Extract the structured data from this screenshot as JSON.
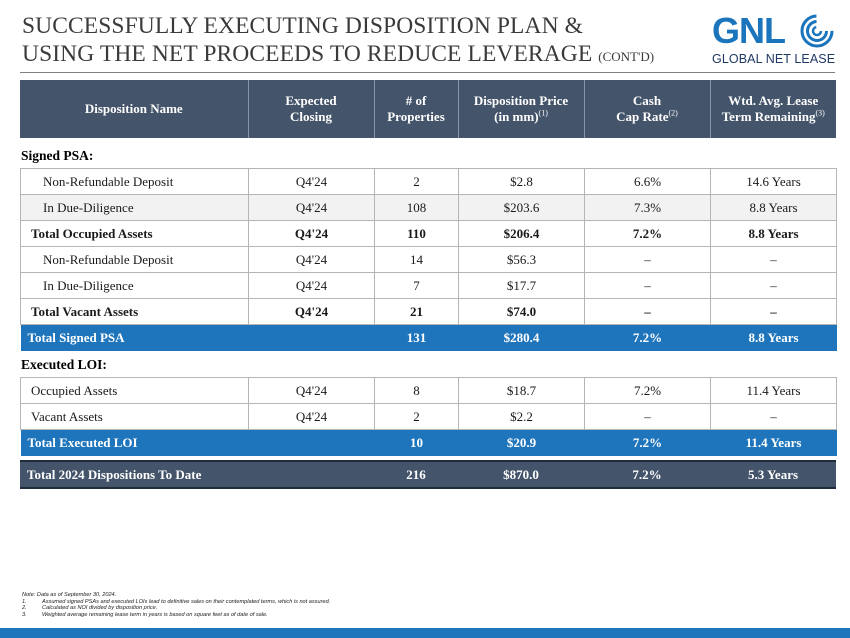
{
  "title": {
    "line1": "SUCCESSFULLY EXECUTING DISPOSITION PLAN &",
    "line2": "USING THE NET PROCEEDS TO REDUCE LEVERAGE",
    "cont": "(CONT'D)"
  },
  "logo": {
    "mark": "GNL",
    "name": "GLOBAL NET LEASE",
    "accent": "#1a75bc"
  },
  "header": {
    "c1": "Disposition Name",
    "c2a": "Expected",
    "c2b": "Closing",
    "c3a": "# of",
    "c3b": "Properties",
    "c4a": "Disposition Price",
    "c4b": "(in mm)",
    "c4sup": "(1)",
    "c5a": "Cash",
    "c5b": "Cap Rate",
    "c5sup": "(2)",
    "c6a": "Wtd. Avg. Lease",
    "c6b": "Term Remaining",
    "c6sup": "(3)"
  },
  "signed_label": "Signed PSA:",
  "signed_rows": [
    {
      "name": "Non-Refundable Deposit",
      "closing": "Q4'24",
      "props": "2",
      "price": "$2.8",
      "cap": "6.6%",
      "term": "14.6 Years"
    },
    {
      "name": "In Due-Diligence",
      "closing": "Q4'24",
      "props": "108",
      "price": "$203.6",
      "cap": "7.3%",
      "term": "8.8 Years"
    },
    {
      "name": "Total Occupied Assets",
      "closing": "Q4'24",
      "props": "110",
      "price": "$206.4",
      "cap": "7.2%",
      "term": "8.8 Years"
    },
    {
      "name": "Non-Refundable Deposit",
      "closing": "Q4'24",
      "props": "14",
      "price": "$56.3",
      "cap": "–",
      "term": "–"
    },
    {
      "name": "In Due-Diligence",
      "closing": "Q4'24",
      "props": "7",
      "price": "$17.7",
      "cap": "–",
      "term": "–"
    },
    {
      "name": "Total Vacant Assets",
      "closing": "Q4'24",
      "props": "21",
      "price": "$74.0",
      "cap": "–",
      "term": "–"
    },
    {
      "name": "Total Signed PSA",
      "closing": "",
      "props": "131",
      "price": "$280.4",
      "cap": "7.2%",
      "term": "8.8 Years"
    }
  ],
  "loi_label": "Executed LOI:",
  "loi_rows": [
    {
      "name": "Occupied Assets",
      "closing": "Q4'24",
      "props": "8",
      "price": "$18.7",
      "cap": "7.2%",
      "term": "11.4 Years"
    },
    {
      "name": "Vacant Assets",
      "closing": "Q4'24",
      "props": "2",
      "price": "$2.2",
      "cap": "–",
      "term": "–"
    },
    {
      "name": "Total Executed LOI",
      "closing": "",
      "props": "10",
      "price": "$20.9",
      "cap": "7.2%",
      "term": "11.4 Years"
    }
  ],
  "total_row": {
    "name": "Total 2024 Dispositions To Date",
    "closing": "",
    "props": "216",
    "price": "$870.0",
    "cap": "7.2%",
    "term": "5.3 Years"
  },
  "footnotes": {
    "note": "Note: Data as of September 30, 2024.",
    "n1": "1.",
    "f1": "Assumed signed PSAs and executed LOIs lead to definitive sales on their contemplated terms, which is not assured.",
    "n2": "2.",
    "f2": "Calculated as NOI divided by disposition price.",
    "n3": "3.",
    "f3": "Weighted average remaining lease term in years is based on square feet as of date of sale."
  },
  "colors": {
    "header_bg": "#44546a",
    "blue_total": "#1f75bc",
    "alt_row": "#f2f2f2"
  }
}
